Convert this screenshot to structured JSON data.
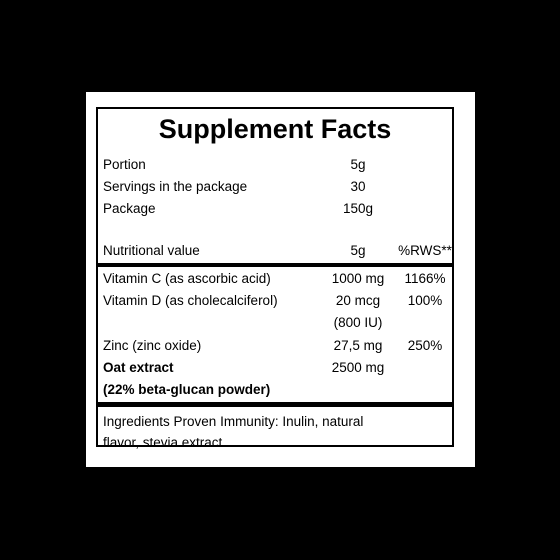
{
  "panel": {
    "title": "Supplement Facts",
    "info_rows": [
      {
        "label": "Portion",
        "value": "5g"
      },
      {
        "label": "Servings in the package",
        "value": "30"
      },
      {
        "label": "Package",
        "value": "150g"
      }
    ],
    "nutrition_header": {
      "label": "Nutritional value",
      "amount": "5g",
      "percent": "%RWS**"
    },
    "nutrients": [
      {
        "label": "Vitamin C (as ascorbic acid)",
        "amount": "1000 mg",
        "percent": "1166%"
      },
      {
        "label": "Vitamin D (as cholecalciferol)",
        "amount": "20 mcg",
        "amount_line2": "(800 IU)",
        "percent": "100%"
      },
      {
        "label": "Zinc (zinc oxide)",
        "amount": "27,5 mg",
        "percent": "250%"
      },
      {
        "label": "Oat extract",
        "label_line2": "(22% beta-glucan powder)",
        "amount": "2500 mg",
        "percent": ""
      }
    ],
    "ingredients_line1": "Ingredients Proven Immunity: Inulin, natural",
    "ingredients_line2": "flavor, stevia extract."
  }
}
